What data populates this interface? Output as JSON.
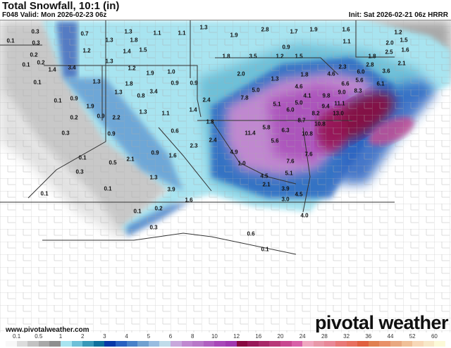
{
  "header": {
    "title": "Total Snowfall, 10:1 (in)",
    "valid": "F048 Valid: Mon 2026-02-23 06z",
    "init": "Init: Sat 2026-02-21 06z HRRR"
  },
  "branding": {
    "website": "www.pivotalweather.com",
    "logo": "pivotal weather"
  },
  "legend": {
    "unit": "in",
    "ticks": [
      "0.1",
      "0.5",
      "1",
      "2",
      "3",
      "4",
      "5",
      "6",
      "8",
      "10",
      "12",
      "16",
      "20",
      "24",
      "28",
      "32",
      "36",
      "44",
      "52",
      "60"
    ],
    "colors": [
      "#f8f8f8",
      "#dcdcdc",
      "#c2c2c2",
      "#a8a8a8",
      "#8e8e8e",
      "#a8e4f0",
      "#6ec0d8",
      "#3898b8",
      "#0e709c",
      "#0838a8",
      "#2860c0",
      "#4880c8",
      "#70a0d0",
      "#98bce0",
      "#c0dcea",
      "#c8a8dc",
      "#c088d0",
      "#b878c8",
      "#b060c0",
      "#a848b8",
      "#a038b0",
      "#880840",
      "#981858",
      "#a82868",
      "#b83878",
      "#c84890",
      "#d860a8",
      "#f0a8c0",
      "#e898a8",
      "#e88898",
      "#e87878",
      "#e87060",
      "#e06040",
      "#e08050",
      "#e89068",
      "#e8a880",
      "#f0c098",
      "#f8d8b8",
      "#f8e8c8",
      "#fcfad8"
    ]
  },
  "map": {
    "labels": [
      "0.1",
      "0.3",
      "0.3",
      "0.2",
      "0.1",
      "0.2",
      "1.4",
      "3.4",
      "0.7",
      "1.3",
      "1.3",
      "1.8",
      "1.1",
      "1.1",
      "1.3",
      "1.2",
      "1.4",
      "1.5",
      "1.3",
      "1.2",
      "1.9",
      "1.0",
      "0.1",
      "1.3",
      "1.8",
      "0.9",
      "0.9",
      "1.3",
      "0.8",
      "3.4",
      "0.1",
      "0.9",
      "1.9",
      "2.4",
      "1.3",
      "1.1",
      "1.4",
      "0.2",
      "0.9",
      "2.2",
      "1.8",
      "1.9",
      "2.8",
      "1.7",
      "1.9",
      "1.6",
      "1.1",
      "0.9",
      "1.8",
      "3.5",
      "1.2",
      "1.5",
      "2.0",
      "1.3",
      "1.8",
      "4.6",
      "5.0",
      "7.8",
      "4.1",
      "5.0",
      "5.1",
      "6.0",
      "9.8",
      "9.0",
      "9.4",
      "11.1",
      "8.2",
      "13.0",
      "4.6",
      "2.3",
      "6.6",
      "5.6",
      "8.3",
      "6.0",
      "2.8",
      "3.6",
      "1.8",
      "2.0",
      "2.5",
      "1.5",
      "1.2",
      "1.6",
      "2.1",
      "6.1",
      "0.3",
      "0.9",
      "0.6",
      "0.1",
      "0.5",
      "2.1",
      "0.9",
      "1.6",
      "2.3",
      "2.4",
      "0.3",
      "1.3",
      "3.9",
      "0.1",
      "0.1",
      "1.6",
      "0.1",
      "0.2",
      "0.3",
      "11.4",
      "5.8",
      "6.3",
      "5.6",
      "8.7",
      "10.8",
      "10.8",
      "4.9",
      "1.0",
      "7.6",
      "7.6",
      "4.5",
      "2.1",
      "3.9",
      "4.5",
      "3.0",
      "0.6",
      "4.0",
      "0.1",
      "5.1"
    ]
  }
}
